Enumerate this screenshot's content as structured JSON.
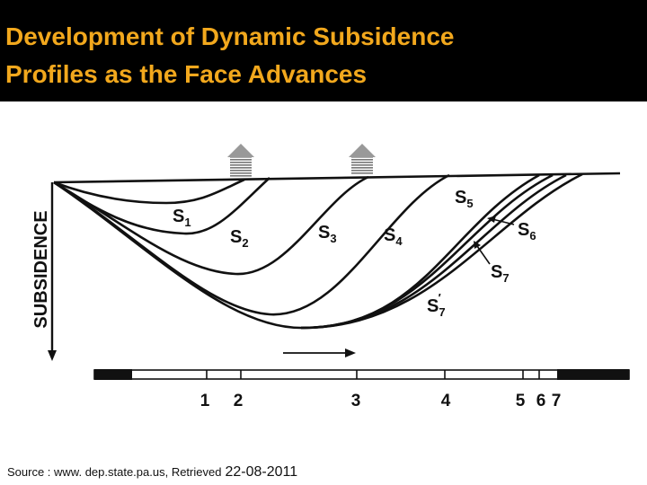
{
  "header": {
    "title_lines": [
      "Development of Dynamic Subsidence",
      "Profiles as the Face Advances"
    ]
  },
  "diagram": {
    "axis_label": "SUBSIDENCE",
    "curves": [
      {
        "letter": "S",
        "sub": "1"
      },
      {
        "letter": "S",
        "sub": "2"
      },
      {
        "letter": "S",
        "sub": "3"
      },
      {
        "letter": "S",
        "sub": "4"
      },
      {
        "letter": "S",
        "sub": "5"
      },
      {
        "letter": "S",
        "sub": "6"
      },
      {
        "letter": "S",
        "sub": "7"
      },
      {
        "letter": "S",
        "sub": "7",
        "prime": "′"
      }
    ],
    "face_positions": [
      "1",
      "2",
      "3",
      "4",
      "5",
      "6",
      "7"
    ]
  },
  "footer": {
    "source": "Source : www. dep.state.pa.us, Retrieved",
    "date": "22-08-2011"
  }
}
